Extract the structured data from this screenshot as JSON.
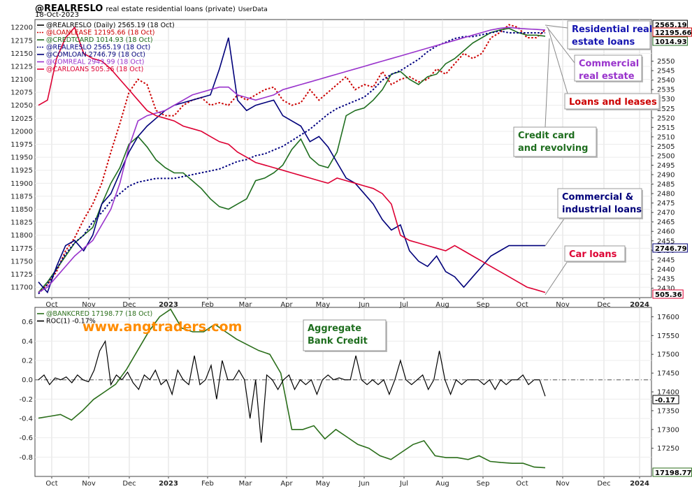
{
  "header": {
    "symbol": "@REALRESLO",
    "description": "real estate residential loans (private)",
    "source": "UserData",
    "date": "18-Oct-2023"
  },
  "watermark": "www.angtraders.com",
  "colors": {
    "realreslo": "#000000",
    "loanlease": "#cc0000",
    "creditcard": "#1f6e1f",
    "realreslo2": "#000080",
    "comloan": "#00007a",
    "comreal": "#9933cc",
    "carloans": "#dd0033",
    "bankcred": "#2a6e1a",
    "roc": "#000000",
    "watermark": "#ff8c00"
  },
  "chart_data": [
    {
      "type": "line",
      "panel": "upper",
      "x_labels": [
        "Oct",
        "Nov",
        "Dec",
        "2023",
        "Feb",
        "Mar",
        "Apr",
        "May",
        "Jun",
        "Jul",
        "Aug",
        "Sep",
        "Oct",
        "Nov",
        "Dec",
        "2024"
      ],
      "left_axis": {
        "range": [
          11680,
          12215
        ],
        "ticks": [
          "12200",
          "12175",
          "12150",
          "12125",
          "12100",
          "12075",
          "12050",
          "12025",
          "12000",
          "11975",
          "11950",
          "11925",
          "11900",
          "11875",
          "11850",
          "11825",
          "11800",
          "11775",
          "11750",
          "11725",
          "11700"
        ]
      },
      "right_axis": {
        "range": [
          2425,
          2572
        ],
        "ticks": [
          "2550",
          "2545",
          "2540",
          "2535",
          "2530",
          "2525",
          "2520",
          "2515",
          "2510",
          "2505",
          "2500",
          "2495",
          "2490",
          "2485",
          "2480",
          "2475",
          "2470",
          "2465",
          "2460",
          "2455",
          "2450",
          "2445",
          "2440",
          "2435",
          "2430"
        ]
      },
      "legend": [
        {
          "key": "realreslo",
          "text": "@REALRESLO (Daily) 2565.19 (18 Oct)",
          "style": "solid"
        },
        {
          "key": "loanlease",
          "text": "@LOANLEASE 12195.66 (18 Oct)",
          "style": "dotted"
        },
        {
          "key": "creditcard",
          "text": "@CREDTCARD 1014.93 (18 Oct)",
          "style": "solid"
        },
        {
          "key": "realreslo2",
          "text": "@REALRESLO 2565.19 (18 Oct)",
          "style": "dotted"
        },
        {
          "key": "comloan",
          "text": "@COMLOAN 2746.79 (18 Oct)",
          "style": "solid"
        },
        {
          "key": "comreal",
          "text": "@COMREAL 2943.99 (18 Oct)",
          "style": "solid"
        },
        {
          "key": "carloans",
          "text": "@CARLOANS 505.36 (18 Oct)",
          "style": "solid"
        }
      ],
      "value_badges": [
        {
          "key": "realreslo",
          "text": "2565.19"
        },
        {
          "key": "loanlease",
          "text": "12195.66"
        },
        {
          "key": "creditcard",
          "text": "1014.93"
        },
        {
          "key": "comloan",
          "text": "2746.79"
        },
        {
          "key": "carloans",
          "text": "505.36"
        }
      ],
      "annotations": [
        {
          "key": "residential",
          "lines": [
            "Residential real",
            "estate loans"
          ],
          "color": "#1515b0"
        },
        {
          "key": "commercial_re",
          "lines": [
            "Commercial",
            "real estate"
          ],
          "color": "#9933cc"
        },
        {
          "key": "loans_leases",
          "lines": [
            "Loans and leases"
          ],
          "color": "#cc0000"
        },
        {
          "key": "credit_card",
          "lines": [
            "Credit card",
            "and revolving"
          ],
          "color": "#1f6e1f"
        },
        {
          "key": "ci_loans",
          "lines": [
            "Commercial  &",
            "industrial loans"
          ],
          "color": "#00007a"
        },
        {
          "key": "car_loans",
          "lines": [
            "Car loans"
          ],
          "color": "#dd0033"
        }
      ],
      "series": [
        {
          "key": "loanlease",
          "style": "dotted",
          "y": [
            11690,
            11705,
            11730,
            11770,
            11795,
            11830,
            11860,
            11900,
            11960,
            12015,
            12075,
            12100,
            12090,
            12040,
            12030,
            12030,
            12050,
            12060,
            12065,
            12050,
            12055,
            12050,
            12070,
            12060,
            12070,
            12080,
            12085,
            12060,
            12050,
            12055,
            12080,
            12060,
            12075,
            12090,
            12105,
            12080,
            12090,
            12085,
            12115,
            12090,
            12100,
            12105,
            12095,
            12100,
            12120,
            12110,
            12130,
            12150,
            12140,
            12150,
            12180,
            12190,
            12205,
            12200,
            12180,
            12180,
            12195
          ]
        },
        {
          "key": "creditcard",
          "style": "solid",
          "y": [
            11690,
            11710,
            11735,
            11760,
            11785,
            11800,
            11815,
            11860,
            11900,
            11930,
            11975,
            11990,
            11970,
            11945,
            11930,
            11920,
            11920,
            11905,
            11890,
            11870,
            11855,
            11850,
            11860,
            11870,
            11905,
            11910,
            11920,
            11935,
            11965,
            11985,
            11950,
            11935,
            11930,
            11960,
            12030,
            12040,
            12045,
            12060,
            12080,
            12110,
            12115,
            12100,
            12090,
            12105,
            12110,
            12130,
            12140,
            12155,
            12170,
            12180,
            12190,
            12195,
            12198,
            12190,
            12185,
            12185,
            12183
          ]
        },
        {
          "key": "realreslo",
          "style": "dotted",
          "y": [
            2427,
            2432,
            2440,
            2448,
            2454,
            2458,
            2465,
            2470,
            2476,
            2480,
            2484,
            2486,
            2487,
            2488,
            2488,
            2488,
            2489,
            2490,
            2491,
            2492,
            2493,
            2495,
            2497,
            2498,
            2500,
            2501,
            2503,
            2505,
            2508,
            2511,
            2514,
            2518,
            2522,
            2525,
            2527,
            2529,
            2531,
            2535,
            2540,
            2543,
            2545,
            2548,
            2551,
            2555,
            2558,
            2560,
            2562,
            2563,
            2563,
            2564,
            2565,
            2566,
            2565,
            2565,
            2565,
            2565,
            2565
          ]
        },
        {
          "key": "comloan",
          "style": "solid",
          "y": [
            11710,
            11690,
            11740,
            11780,
            11790,
            11770,
            11800,
            11860,
            11880,
            11920,
            11960,
            11990,
            12010,
            12025,
            12040,
            12050,
            12055,
            12060,
            12065,
            12070,
            12120,
            12180,
            12060,
            12040,
            12050,
            12055,
            12060,
            12030,
            12020,
            12010,
            11980,
            11990,
            11970,
            11940,
            11910,
            11900,
            11880,
            11860,
            11830,
            11810,
            11820,
            11770,
            11750,
            11740,
            11760,
            11730,
            11720,
            11700,
            11720,
            11740,
            11760,
            11770,
            11780,
            11780,
            11780,
            11780,
            11780
          ]
        },
        {
          "key": "comreal",
          "style": "solid",
          "y": [
            11690,
            11700,
            11720,
            11740,
            11760,
            11775,
            11790,
            11820,
            11850,
            11900,
            11970,
            12020,
            12030,
            12035,
            12040,
            12050,
            12060,
            12070,
            12075,
            12080,
            12085,
            12085,
            12070,
            12065,
            12060,
            12065,
            12070,
            12080,
            12085,
            12090,
            12095,
            12100,
            12105,
            12110,
            12115,
            12120,
            12125,
            12130,
            12135,
            12140,
            12145,
            12150,
            12155,
            12160,
            12165,
            12170,
            12175,
            12180,
            12185,
            12190,
            12195,
            12198,
            12200,
            12198,
            12197,
            12196,
            12195
          ]
        },
        {
          "key": "carloans",
          "style": "solid",
          "y": [
            12050,
            12060,
            12140,
            12180,
            12200,
            12150,
            12140,
            12135,
            12120,
            12100,
            12080,
            12060,
            12040,
            12030,
            12025,
            12020,
            12010,
            12005,
            12000,
            11990,
            11980,
            11975,
            11960,
            11950,
            11940,
            11935,
            11930,
            11925,
            11920,
            11915,
            11910,
            11905,
            11900,
            11910,
            11905,
            11900,
            11895,
            11890,
            11880,
            11860,
            11800,
            11790,
            11785,
            11780,
            11775,
            11770,
            11780,
            11770,
            11760,
            11750,
            11740,
            11730,
            11720,
            11710,
            11700,
            11695,
            11690
          ]
        }
      ]
    },
    {
      "type": "line",
      "panel": "lower",
      "x_labels": [
        "Oct",
        "Nov",
        "Dec",
        "2023",
        "Feb",
        "Mar",
        "Apr",
        "May",
        "Jun",
        "Jul",
        "Aug",
        "Sep",
        "Oct",
        "Nov",
        "Dec",
        "2024"
      ],
      "left_axis": {
        "range": [
          -1.0,
          0.75
        ],
        "ticks": [
          "0.6",
          "0.4",
          "0.2",
          "0.0",
          "-0.2",
          "-0.4",
          "-0.6",
          "-0.8"
        ]
      },
      "right_axis": {
        "range": [
          17175,
          17625
        ],
        "ticks": [
          "17600",
          "17550",
          "17500",
          "17450",
          "17400",
          "17350",
          "17300",
          "17250"
        ]
      },
      "legend": [
        {
          "key": "bankcred",
          "text": "@BANKCRED 17198.77 (18 Oct)",
          "style": "solid"
        },
        {
          "key": "roc",
          "text": "ROC(1) -0.17%",
          "style": "solid"
        }
      ],
      "value_badges": [
        {
          "key": "roc",
          "text": "-0.17"
        },
        {
          "key": "bankcred",
          "text": "17198.77"
        }
      ],
      "annotations": [
        {
          "key": "aggregate",
          "lines": [
            "Aggregate",
            "Bank Credit"
          ],
          "color": "#1f6e1f"
        }
      ],
      "series": [
        {
          "key": "bankcred",
          "style": "solid",
          "y": [
            17330,
            17335,
            17340,
            17325,
            17350,
            17380,
            17400,
            17420,
            17460,
            17510,
            17560,
            17600,
            17620,
            17570,
            17560,
            17560,
            17580,
            17560,
            17540,
            17525,
            17510,
            17500,
            17450,
            17300,
            17300,
            17310,
            17275,
            17300,
            17280,
            17260,
            17250,
            17230,
            17220,
            17240,
            17260,
            17270,
            17230,
            17225,
            17225,
            17220,
            17230,
            17215,
            17212,
            17210,
            17210,
            17200,
            17198
          ]
        },
        {
          "key": "roc",
          "style": "solid",
          "y": [
            0.0,
            0.05,
            -0.05,
            0.02,
            0.0,
            0.03,
            -0.03,
            0.05,
            0.0,
            -0.02,
            0.1,
            0.3,
            0.4,
            -0.05,
            0.05,
            0.0,
            0.08,
            -0.03,
            -0.1,
            0.05,
            0.0,
            0.1,
            -0.05,
            0.0,
            -0.15,
            0.1,
            0.0,
            -0.05,
            0.25,
            -0.05,
            0.0,
            0.15,
            -0.2,
            0.2,
            0.0,
            0.0,
            0.1,
            0.0,
            -0.4,
            0.0,
            -0.65,
            0.05,
            0.0,
            -0.1,
            0.0,
            0.05,
            -0.1,
            0.0,
            -0.05,
            0.0,
            -0.15,
            0.0,
            0.05,
            0.0,
            0.02,
            0.0,
            0.0,
            0.25,
            0.0,
            -0.05,
            0.0,
            -0.05,
            0.0,
            -0.15,
            0.0,
            0.2,
            0.0,
            -0.05,
            0.0,
            0.05,
            -0.1,
            0.0,
            0.3,
            0.0,
            -0.15,
            0.0,
            -0.05,
            0.0,
            0.0,
            0.0,
            -0.05,
            0.0,
            -0.1,
            0.0,
            -0.05,
            0.0,
            0.0,
            0.05,
            -0.05,
            0.0,
            0.0,
            -0.17
          ]
        }
      ]
    }
  ]
}
